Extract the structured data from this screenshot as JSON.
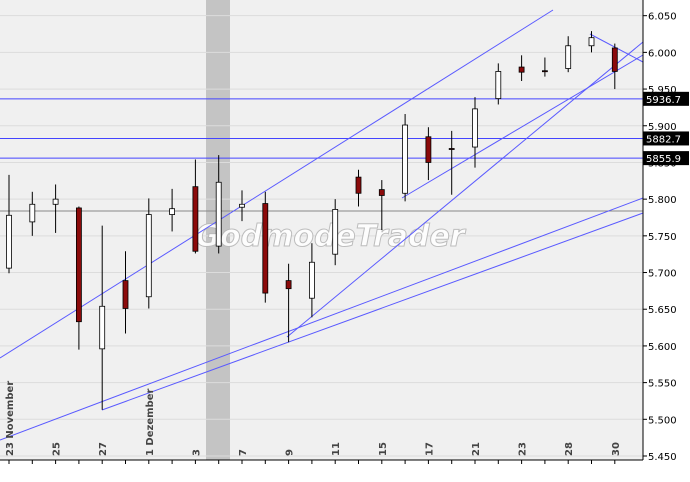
{
  "chart_data": {
    "type": "candlestick",
    "watermark": "GodmodeTrader",
    "categories": [
      "23 November",
      null,
      "25",
      null,
      "27",
      null,
      "1 Dezember",
      null,
      "3",
      null,
      "7",
      null,
      "9",
      null,
      "11",
      null,
      "15",
      null,
      "17",
      null,
      "21",
      null,
      "23",
      null,
      "28",
      null,
      "30"
    ],
    "open": [
      5706,
      5769,
      5793,
      5788,
      5596,
      5689,
      5667,
      5779,
      5817,
      5736,
      5789,
      5794,
      5689,
      5665,
      5725,
      5830,
      5813,
      5808,
      5885,
      5869,
      5871,
      5937,
      5980,
      5975,
      5978,
      6009,
      6006
    ],
    "high": [
      5833,
      5810,
      5820,
      5790,
      5764,
      5729,
      5801,
      5814,
      5854,
      5860,
      5812,
      5810,
      5712,
      5740,
      5800,
      5840,
      5826,
      5916,
      5898,
      5893,
      5939,
      5985,
      5996,
      5993,
      6022,
      6029,
      6012
    ],
    "low": [
      5699,
      5750,
      5754,
      5595,
      5513,
      5617,
      5651,
      5756,
      5726,
      5726,
      5770,
      5659,
      5605,
      5639,
      5710,
      5790,
      5758,
      5797,
      5826,
      5806,
      5843,
      5929,
      5961,
      5967,
      5973,
      6000,
      5950
    ],
    "close": [
      5778,
      5793,
      5800,
      5633,
      5654,
      5651,
      5779,
      5787,
      5729,
      5823,
      5793,
      5672,
      5678,
      5714,
      5786,
      5808,
      5805,
      5901,
      5850,
      5868,
      5923,
      5974,
      5973,
      5974,
      6009,
      6020,
      5974
    ],
    "up_color": "#ffffff",
    "down_color": "#8b0a0a",
    "levels": [
      5936.7,
      5882.7,
      5855.9
    ],
    "ylim": [
      5450,
      6070
    ],
    "yticks": [
      {
        "value": 5450,
        "label": "5.450"
      },
      {
        "value": 5500,
        "label": "5.500"
      },
      {
        "value": 5550,
        "label": "5.550"
      },
      {
        "value": 5600,
        "label": "5.600"
      },
      {
        "value": 5650,
        "label": "5.650"
      },
      {
        "value": 5700,
        "label": "5.700"
      },
      {
        "value": 5750,
        "label": "5.750"
      },
      {
        "value": 5800,
        "label": "5.800"
      },
      {
        "value": 5850,
        "label": "5.850"
      },
      {
        "value": 5900,
        "label": "5.900"
      },
      {
        "value": 5950,
        "label": "5.950"
      },
      {
        "value": 6000,
        "label": "6.000"
      },
      {
        "value": 6050,
        "label": "6.050"
      }
    ],
    "grid": true
  }
}
